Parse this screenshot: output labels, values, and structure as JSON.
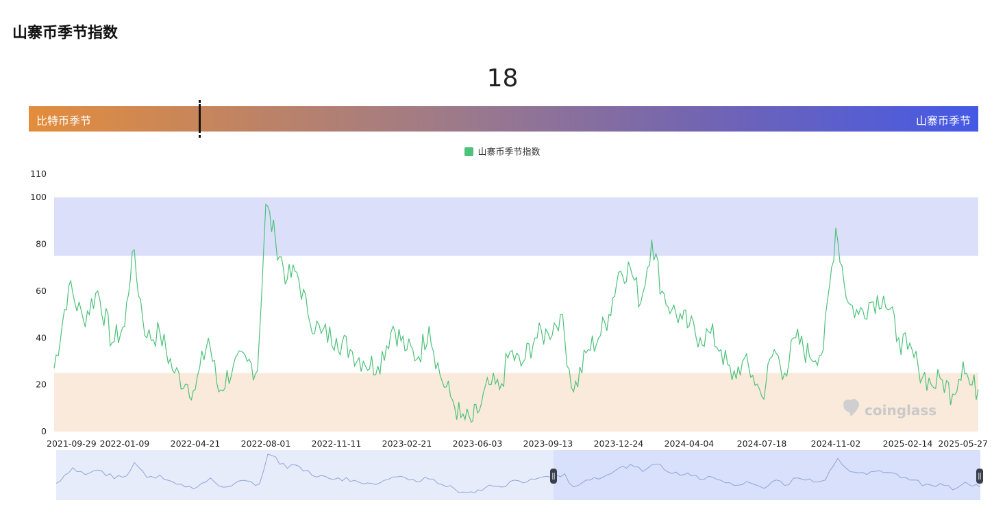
{
  "page": {
    "title": "山寨币季节指数"
  },
  "gauge": {
    "value": "18",
    "value_num": 18,
    "left_label": "比特币季节",
    "right_label": "山寨币季节"
  },
  "watermark": "coinglass",
  "colors": {
    "line": "#4cc27a",
    "altseason_band": "#dcdff9",
    "bitcoin_band": "#faeadb",
    "navigator_line": "#8fa4d6",
    "navigator_fill": "#e6ecfa",
    "navigator_selected": "#d8e0fb"
  },
  "chart_data": {
    "type": "line",
    "title": "",
    "xlabel": "",
    "ylabel": "",
    "ylim": [
      0,
      110
    ],
    "yticks": [
      0,
      20,
      40,
      60,
      80,
      100,
      110
    ],
    "xticks": [
      "2021-09-29",
      "2022-01-09",
      "2022-04-21",
      "2022-08-01",
      "2022-11-11",
      "2023-02-21",
      "2023-06-03",
      "2023-09-13",
      "2023-12-24",
      "2024-04-04",
      "2024-07-18",
      "2024-11-02",
      "2025-02-14",
      "2025-05-27"
    ],
    "grid": false,
    "legend": "top-center",
    "bands": [
      {
        "from": 75,
        "to": 100,
        "label": ""
      },
      {
        "from": 0,
        "to": 25,
        "label": ""
      }
    ],
    "series": [
      {
        "name": "山寨币季节指数",
        "x": [
          "2021-09-29",
          "2021-10-20",
          "2021-11-10",
          "2021-12-01",
          "2021-12-22",
          "2022-01-09",
          "2022-01-20",
          "2022-02-10",
          "2022-03-01",
          "2022-03-22",
          "2022-04-10",
          "2022-04-21",
          "2022-05-10",
          "2022-05-25",
          "2022-06-15",
          "2022-07-05",
          "2022-07-20",
          "2022-08-01",
          "2022-08-15",
          "2022-09-01",
          "2022-09-15",
          "2022-10-01",
          "2022-10-20",
          "2022-11-11",
          "2022-12-01",
          "2022-12-20",
          "2023-01-10",
          "2023-02-01",
          "2023-02-21",
          "2023-03-10",
          "2023-03-25",
          "2023-04-10",
          "2023-04-25",
          "2023-05-10",
          "2023-05-25",
          "2023-06-03",
          "2023-06-20",
          "2023-07-05",
          "2023-07-20",
          "2023-08-05",
          "2023-08-25",
          "2023-09-13",
          "2023-10-01",
          "2023-10-20",
          "2023-11-10",
          "2023-11-25",
          "2023-12-10",
          "2023-12-24",
          "2024-01-10",
          "2024-01-25",
          "2024-02-10",
          "2024-02-25",
          "2024-03-10",
          "2024-03-25",
          "2024-04-04",
          "2024-04-20",
          "2024-05-05",
          "2024-05-20",
          "2024-06-05",
          "2024-06-20",
          "2024-07-05",
          "2024-07-18",
          "2024-08-05",
          "2024-08-20",
          "2024-09-05",
          "2024-09-25",
          "2024-10-15",
          "2024-11-02",
          "2024-11-20",
          "2024-12-05",
          "2024-12-20",
          "2025-01-10",
          "2025-02-01",
          "2025-02-14",
          "2025-03-01",
          "2025-03-20",
          "2025-04-05",
          "2025-04-20",
          "2025-05-05",
          "2025-05-15",
          "2025-05-27"
        ],
        "values": [
          27,
          62,
          48,
          60,
          38,
          45,
          77,
          40,
          42,
          25,
          20,
          18,
          40,
          17,
          28,
          30,
          26,
          97,
          82,
          65,
          68,
          50,
          42,
          40,
          35,
          30,
          28,
          45,
          35,
          32,
          45,
          24,
          15,
          6,
          4,
          8,
          20,
          18,
          34,
          28,
          40,
          42,
          50,
          17,
          35,
          40,
          50,
          68,
          70,
          55,
          82,
          60,
          52,
          48,
          45,
          40,
          42,
          35,
          22,
          30,
          24,
          15,
          35,
          25,
          40,
          32,
          35,
          87,
          55,
          50,
          55,
          58,
          40,
          35,
          28,
          20,
          22,
          16,
          30,
          20,
          18
        ]
      }
    ]
  }
}
